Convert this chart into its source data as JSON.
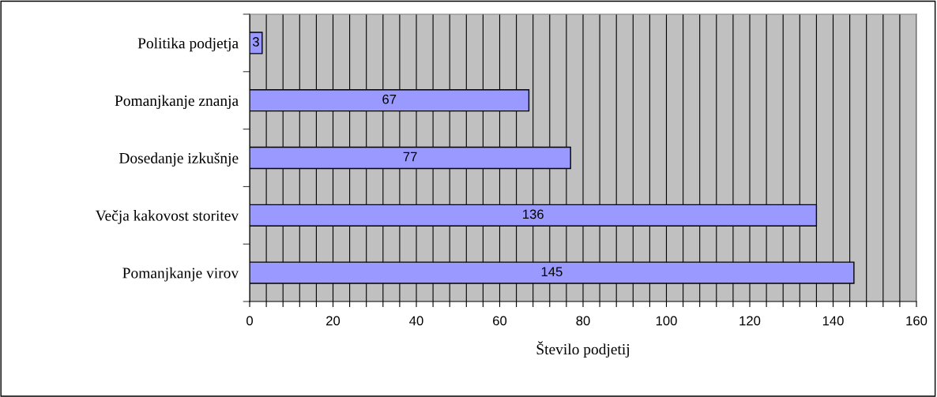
{
  "chart_data": {
    "type": "bar",
    "orientation": "horizontal",
    "xlabel": "Število podjetij",
    "categories": [
      "Politika podjetja",
      "Pomanjkanje znanja",
      "Dosedanje izkušnje",
      "Večja kakovost storitev",
      "Pomanjkanje virov"
    ],
    "values": [
      3,
      67,
      77,
      136,
      145
    ],
    "color": "#9999ff",
    "data_labels": true,
    "xlim": [
      0,
      160
    ],
    "xticks": [
      0,
      {
        "value": 4,
        "label": null
      },
      {
        "value": 8,
        "label": null
      },
      {
        "value": 12,
        "label": null
      },
      {
        "value": 16,
        "label": null
      },
      20,
      {
        "value": 24,
        "label": null
      },
      {
        "value": 28,
        "label": null
      },
      {
        "value": 32,
        "label": null
      },
      {
        "value": 36,
        "label": null
      },
      40,
      {
        "value": 44,
        "label": null
      },
      {
        "value": 48,
        "label": null
      },
      {
        "value": 52,
        "label": null
      },
      {
        "value": 56,
        "label": null
      },
      60,
      {
        "value": 64,
        "label": null
      },
      {
        "value": 68,
        "label": null
      },
      {
        "value": 72,
        "label": null
      },
      {
        "value": 76,
        "label": null
      },
      80,
      {
        "value": 84,
        "label": null
      },
      {
        "value": 88,
        "label": null
      },
      {
        "value": 92,
        "label": null
      },
      {
        "value": 96,
        "label": null
      },
      100,
      {
        "value": 104,
        "label": null
      },
      {
        "value": 108,
        "label": null
      },
      {
        "value": 112,
        "label": null
      },
      {
        "value": 116,
        "label": null
      },
      120,
      {
        "value": 124,
        "label": null
      },
      {
        "value": 128,
        "label": null
      },
      {
        "value": 132,
        "label": null
      },
      {
        "value": 136,
        "label": null
      },
      140,
      {
        "value": 144,
        "label": null
      },
      {
        "value": 148,
        "label": null
      },
      {
        "value": 152,
        "label": null
      },
      {
        "value": 156,
        "label": null
      },
      160
    ],
    "grid": "x"
  }
}
